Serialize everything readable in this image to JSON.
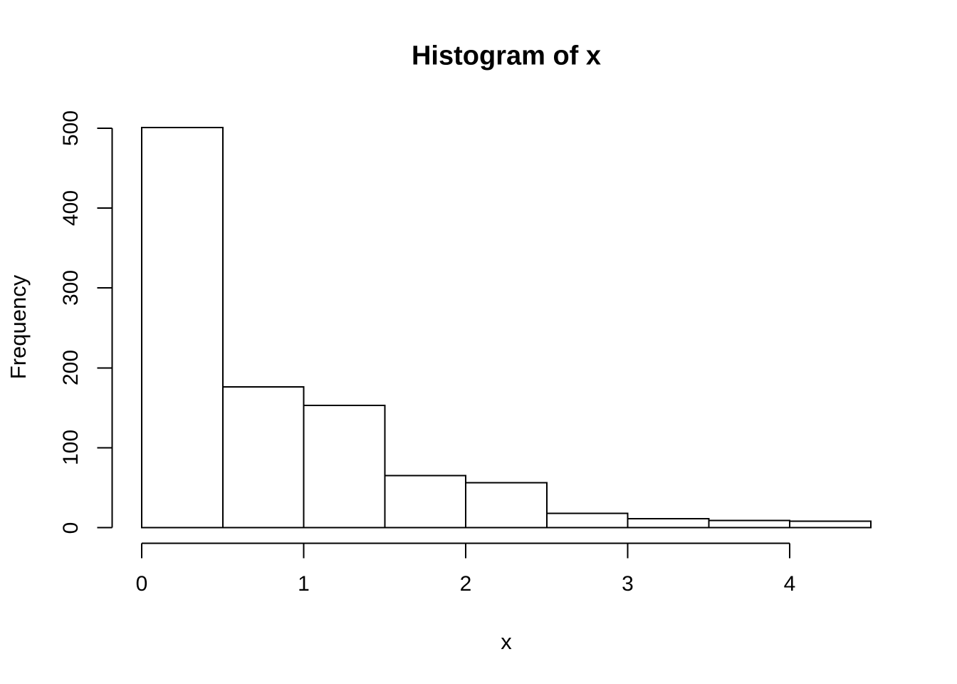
{
  "figure": {
    "background": "#ffffff",
    "foreground": "#000000"
  },
  "chart_data": {
    "type": "bar",
    "subtype": "histogram",
    "title": "Histogram of x",
    "xlabel": "x",
    "ylabel": "Frequency",
    "bin_breaks": [
      0,
      0.5,
      1,
      1.5,
      2,
      2.5,
      3,
      3.5,
      4,
      4.5
    ],
    "counts": [
      501,
      176,
      153,
      65,
      56,
      18,
      11,
      9,
      8
    ],
    "x_ticks": [
      0,
      1,
      2,
      3,
      4
    ],
    "x_tick_labels": [
      "0",
      "1",
      "2",
      "3",
      "4"
    ],
    "y_ticks": [
      0,
      100,
      200,
      300,
      400,
      500
    ],
    "y_tick_labels": [
      "0",
      "100",
      "200",
      "300",
      "400",
      "500"
    ],
    "xlim": [
      0,
      4.5
    ],
    "ylim": [
      0,
      500
    ],
    "bar_fill": "#ffffff",
    "bar_border": "#000000",
    "axis_color": "#000000",
    "grid": false,
    "legend": false
  }
}
